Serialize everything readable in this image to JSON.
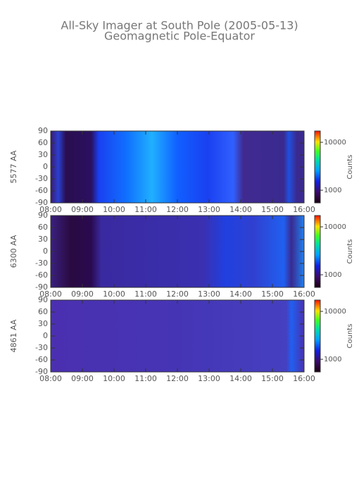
{
  "title": "All-Sky Imager at South Pole (2005-05-13)",
  "subtitle": "Geomagnetic Pole-Equator",
  "chart_data": [
    {
      "type": "heatmap",
      "ylabel": "5577 AA",
      "colorbar_label": "Counts",
      "xlim": [
        8,
        16
      ],
      "xticks": [
        {
          "value": 8,
          "label": "08:00"
        },
        {
          "value": 9,
          "label": "09:00"
        },
        {
          "value": 10,
          "label": "10:00"
        },
        {
          "value": 11,
          "label": "11:00"
        },
        {
          "value": 12,
          "label": "12:00"
        },
        {
          "value": 13,
          "label": "13:00"
        },
        {
          "value": 14,
          "label": "14:00"
        },
        {
          "value": 15,
          "label": "15:00"
        },
        {
          "value": 16,
          "label": "16:00"
        }
      ],
      "ylim": [
        -90,
        90
      ],
      "yticks": [
        -90,
        -60,
        -30,
        0,
        30,
        60,
        90
      ],
      "clim": [
        545,
        17200
      ],
      "clog": true,
      "cticks": [
        {
          "value": 1000,
          "label": "1000"
        },
        {
          "value": 10000,
          "label": "10000"
        }
      ]
    },
    {
      "type": "heatmap",
      "ylabel": "6300 AA",
      "colorbar_label": "Counts",
      "xlim": [
        8,
        16
      ],
      "xticks": [
        {
          "value": 8,
          "label": "08:00"
        },
        {
          "value": 9,
          "label": "09:00"
        },
        {
          "value": 10,
          "label": "10:00"
        },
        {
          "value": 11,
          "label": "11:00"
        },
        {
          "value": 12,
          "label": "12:00"
        },
        {
          "value": 13,
          "label": "13:00"
        },
        {
          "value": 14,
          "label": "14:00"
        },
        {
          "value": 15,
          "label": "15:00"
        },
        {
          "value": 16,
          "label": "16:00"
        }
      ],
      "ylim": [
        -90,
        90
      ],
      "yticks": [
        -90,
        -60,
        -30,
        0,
        30,
        60,
        90
      ],
      "clim": [
        545,
        17200
      ],
      "clog": true,
      "cticks": [
        {
          "value": 1000,
          "label": "1000"
        },
        {
          "value": 10000,
          "label": "10000"
        }
      ]
    },
    {
      "type": "heatmap",
      "ylabel": "4861 AA",
      "colorbar_label": "Counts",
      "xlim": [
        8,
        16
      ],
      "xticks": [
        {
          "value": 8,
          "label": "08:00"
        },
        {
          "value": 9,
          "label": "09:00"
        },
        {
          "value": 10,
          "label": "10:00"
        },
        {
          "value": 11,
          "label": "11:00"
        },
        {
          "value": 12,
          "label": "12:00"
        },
        {
          "value": 13,
          "label": "13:00"
        },
        {
          "value": 14,
          "label": "14:00"
        },
        {
          "value": 15,
          "label": "15:00"
        },
        {
          "value": 16,
          "label": "16:00"
        }
      ],
      "ylim": [
        -90,
        90
      ],
      "yticks": [
        -90,
        -60,
        -30,
        0,
        30,
        60,
        90
      ],
      "clim": [
        545,
        17200
      ],
      "clog": true,
      "cticks": [
        {
          "value": 1000,
          "label": "1000"
        },
        {
          "value": 10000,
          "label": "10000"
        }
      ]
    }
  ]
}
